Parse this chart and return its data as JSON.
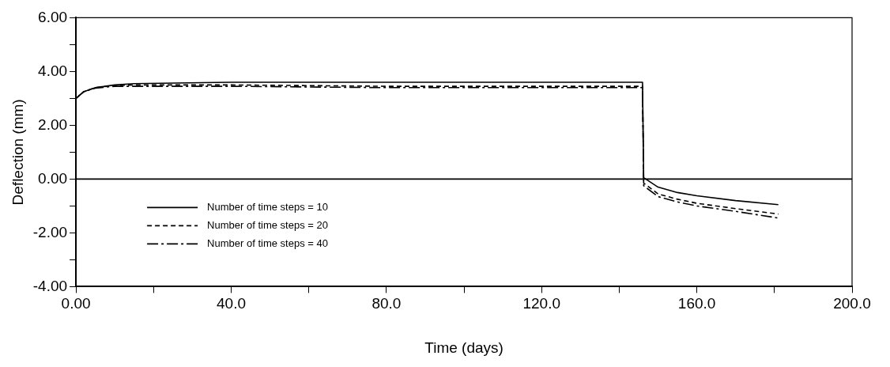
{
  "chart_data": {
    "type": "line",
    "xlabel": "Time (days)",
    "ylabel": "Deflection (mm)",
    "xlim": [
      0,
      200
    ],
    "ylim": [
      -4,
      6
    ],
    "xticks": [
      {
        "value": 0,
        "label": "0.00"
      },
      {
        "value": 20,
        "label": null
      },
      {
        "value": 40,
        "label": "40.0"
      },
      {
        "value": 60,
        "label": null
      },
      {
        "value": 80,
        "label": "80.0"
      },
      {
        "value": 100,
        "label": null
      },
      {
        "value": 120,
        "label": "120.0"
      },
      {
        "value": 140,
        "label": null
      },
      {
        "value": 160,
        "label": "160.0"
      },
      {
        "value": 180,
        "label": null
      },
      {
        "value": 200,
        "label": "200.0"
      }
    ],
    "yticks": [
      {
        "value": -4,
        "label": "-4.00"
      },
      {
        "value": -3,
        "label": null
      },
      {
        "value": -2,
        "label": "-2.00"
      },
      {
        "value": -1,
        "label": null
      },
      {
        "value": 0,
        "label": "0.00"
      },
      {
        "value": 1,
        "label": null
      },
      {
        "value": 2,
        "label": "2.00"
      },
      {
        "value": 3,
        "label": null
      },
      {
        "value": 4,
        "label": "4.00"
      },
      {
        "value": 5,
        "label": null
      },
      {
        "value": 6,
        "label": "6.00"
      }
    ],
    "x": [
      0,
      2,
      5,
      10,
      15,
      40,
      80,
      120,
      146,
      146.3,
      150,
      155,
      160,
      170,
      181
    ],
    "series": [
      {
        "name": "Number of time steps = 10",
        "color": "#000000",
        "line_style": "solid",
        "values": [
          3.0,
          3.25,
          3.4,
          3.5,
          3.55,
          3.6,
          3.6,
          3.6,
          3.6,
          0.05,
          -0.3,
          -0.5,
          -0.62,
          -0.8,
          -0.95
        ]
      },
      {
        "name": "Number of time steps = 20",
        "color": "#000000",
        "line_style": "dashed",
        "values": [
          3.0,
          3.25,
          3.4,
          3.48,
          3.5,
          3.5,
          3.45,
          3.45,
          3.45,
          -0.15,
          -0.55,
          -0.75,
          -0.9,
          -1.1,
          -1.3
        ]
      },
      {
        "name": "Number of time steps = 40",
        "color": "#000000",
        "line_style": "dashdot",
        "values": [
          3.0,
          3.25,
          3.38,
          3.45,
          3.45,
          3.45,
          3.4,
          3.4,
          3.4,
          -0.25,
          -0.65,
          -0.85,
          -1.0,
          -1.2,
          -1.45
        ]
      }
    ],
    "ref_lines": [
      {
        "axis": "y",
        "value": 0,
        "label": null,
        "color": "#000000",
        "line_style": "solid"
      }
    ],
    "grid": false,
    "legend": "bottom left",
    "marker": "none"
  }
}
